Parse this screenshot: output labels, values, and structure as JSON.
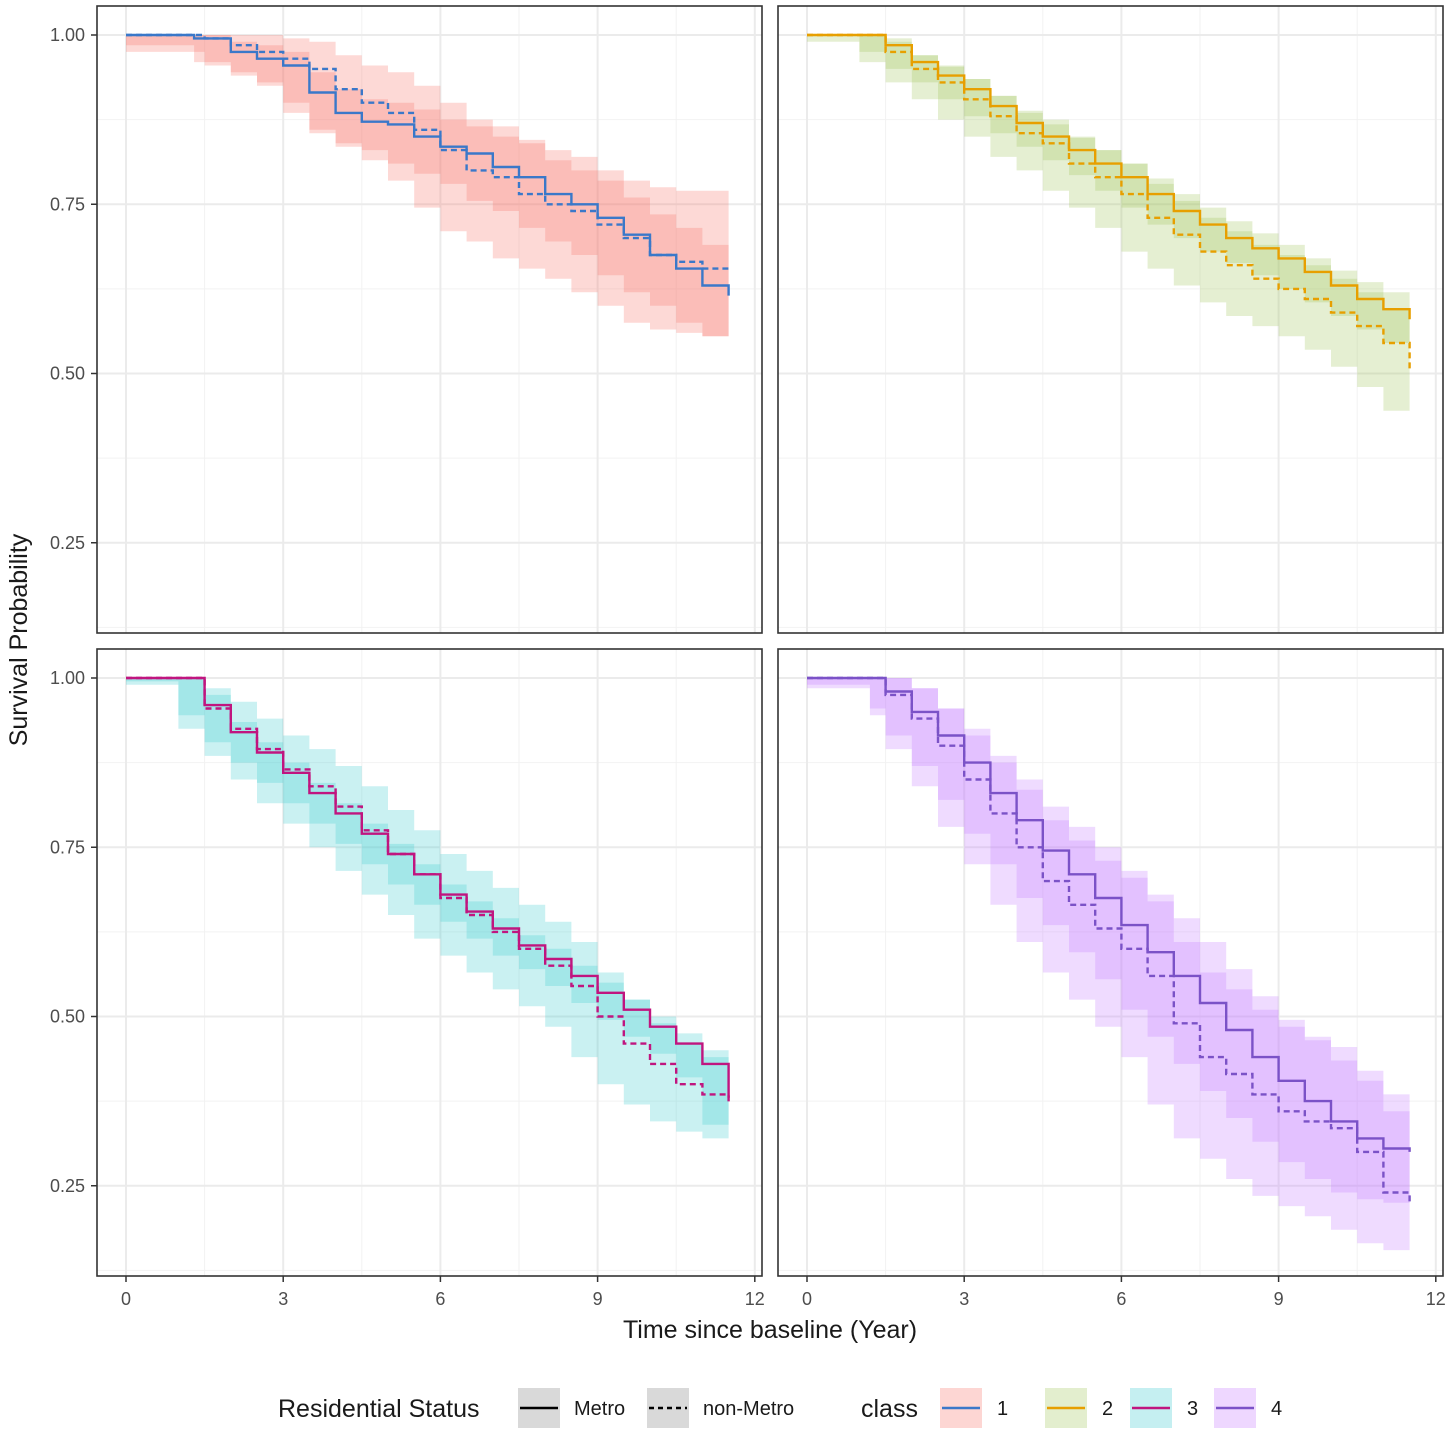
{
  "chart_data": {
    "type": "line",
    "subtype": "kaplan-meier survival curves with confidence bands, faceted 2x2 by class",
    "xlabel": "Time since baseline (Year)",
    "ylabel": "Survival Probability",
    "xlim": [
      0,
      12
    ],
    "ylim": [
      0.12,
      1.04
    ],
    "x_ticks": [
      "0",
      "3",
      "6",
      "9",
      "12"
    ],
    "y_ticks": [
      "0.25",
      "0.50",
      "0.75",
      "1.00"
    ],
    "grid": true,
    "legend_position": "bottom",
    "legends": {
      "linetype": {
        "title": "Residential Status",
        "entries": [
          "Metro",
          "non-Metro"
        ]
      },
      "class": {
        "title": "class",
        "entries": [
          "1",
          "2",
          "3",
          "4"
        ]
      }
    },
    "colors": {
      "1": {
        "line": "#3a78c9",
        "fill": "#f8766d"
      },
      "2": {
        "line": "#e79f00",
        "fill": "#a3c65c"
      },
      "3": {
        "line": "#c0157f",
        "fill": "#3fcbd0"
      },
      "4": {
        "line": "#7b52c7",
        "fill": "#c77cff"
      }
    },
    "panels": [
      {
        "class": "1",
        "series": [
          {
            "name": "Metro",
            "x": [
              0,
              1.3,
              2,
              2.5,
              3,
              3.5,
              4,
              4.5,
              5,
              5.5,
              6,
              6.5,
              7,
              7.5,
              8,
              8.5,
              9,
              9.5,
              10,
              10.5,
              11,
              11.5
            ],
            "y": [
              1.0,
              0.995,
              0.975,
              0.965,
              0.955,
              0.915,
              0.885,
              0.872,
              0.868,
              0.85,
              0.835,
              0.825,
              0.805,
              0.79,
              0.765,
              0.75,
              0.73,
              0.705,
              0.675,
              0.655,
              0.63,
              0.615
            ],
            "lower": [
              1.0,
              0.985,
              0.96,
              0.945,
              0.93,
              0.885,
              0.855,
              0.84,
              0.83,
              0.81,
              0.795,
              0.78,
              0.755,
              0.74,
              0.715,
              0.695,
              0.675,
              0.645,
              0.62,
              0.6,
              0.575,
              0.555
            ],
            "upper": [
              1.0,
              1.0,
              0.99,
              0.985,
              0.975,
              0.945,
              0.92,
              0.905,
              0.9,
              0.89,
              0.875,
              0.865,
              0.85,
              0.84,
              0.815,
              0.8,
              0.785,
              0.76,
              0.735,
              0.715,
              0.69,
              0.68
            ]
          },
          {
            "name": "non-Metro",
            "x": [
              0,
              1.5,
              2,
              2.5,
              3,
              3.5,
              4,
              4.5,
              5,
              5.5,
              6,
              6.5,
              7,
              7.5,
              8,
              8.5,
              9,
              9.5,
              10,
              10.5,
              11,
              11.5
            ],
            "y": [
              1.0,
              0.995,
              0.985,
              0.975,
              0.965,
              0.95,
              0.92,
              0.9,
              0.885,
              0.86,
              0.83,
              0.8,
              0.79,
              0.765,
              0.75,
              0.74,
              0.72,
              0.7,
              0.675,
              0.665,
              0.655,
              0.65
            ],
            "lower": [
              1.0,
              0.975,
              0.955,
              0.94,
              0.925,
              0.9,
              0.86,
              0.835,
              0.815,
              0.785,
              0.745,
              0.71,
              0.695,
              0.67,
              0.655,
              0.64,
              0.62,
              0.6,
              0.575,
              0.565,
              0.56,
              0.555
            ],
            "upper": [
              1.0,
              1.0,
              1.0,
              1.0,
              0.995,
              0.99,
              0.97,
              0.955,
              0.945,
              0.925,
              0.9,
              0.875,
              0.865,
              0.845,
              0.83,
              0.82,
              0.8,
              0.785,
              0.775,
              0.77,
              0.77,
              0.77
            ]
          }
        ]
      },
      {
        "class": "2",
        "series": [
          {
            "name": "Metro",
            "x": [
              0,
              1.0,
              1.5,
              2,
              2.5,
              3,
              3.5,
              4,
              4.5,
              5,
              5.5,
              6,
              6.5,
              7,
              7.5,
              8,
              8.5,
              9,
              9.5,
              10,
              10.5,
              11,
              11.5
            ],
            "y": [
              1.0,
              1.0,
              0.985,
              0.96,
              0.94,
              0.92,
              0.895,
              0.87,
              0.85,
              0.83,
              0.81,
              0.79,
              0.765,
              0.74,
              0.72,
              0.7,
              0.685,
              0.67,
              0.65,
              0.63,
              0.61,
              0.595,
              0.58
            ],
            "lower": [
              1.0,
              1.0,
              0.975,
              0.95,
              0.93,
              0.905,
              0.88,
              0.855,
              0.835,
              0.815,
              0.793,
              0.77,
              0.745,
              0.72,
              0.7,
              0.68,
              0.663,
              0.645,
              0.625,
              0.605,
              0.585,
              0.565,
              0.545
            ],
            "upper": [
              1.0,
              1.0,
              0.995,
              0.97,
              0.953,
              0.935,
              0.91,
              0.888,
              0.868,
              0.848,
              0.83,
              0.81,
              0.788,
              0.765,
              0.745,
              0.725,
              0.707,
              0.69,
              0.67,
              0.652,
              0.635,
              0.62,
              0.605
            ]
          },
          {
            "name": "non-Metro",
            "x": [
              0,
              1.0,
              1.5,
              2,
              2.5,
              3,
              3.5,
              4,
              4.5,
              5,
              5.5,
              6,
              6.5,
              7,
              7.5,
              8,
              8.5,
              9,
              9.5,
              10,
              10.5,
              11,
              11.5
            ],
            "y": [
              1.0,
              1.0,
              0.975,
              0.95,
              0.93,
              0.905,
              0.88,
              0.855,
              0.84,
              0.81,
              0.79,
              0.765,
              0.73,
              0.705,
              0.68,
              0.66,
              0.64,
              0.625,
              0.61,
              0.59,
              0.57,
              0.545,
              0.505
            ],
            "lower": [
              1.0,
              0.99,
              0.96,
              0.93,
              0.905,
              0.875,
              0.85,
              0.82,
              0.8,
              0.77,
              0.745,
              0.715,
              0.68,
              0.655,
              0.63,
              0.605,
              0.585,
              0.57,
              0.555,
              0.535,
              0.51,
              0.48,
              0.445
            ],
            "upper": [
              1.0,
              1.0,
              0.99,
              0.97,
              0.955,
              0.935,
              0.91,
              0.885,
              0.875,
              0.85,
              0.83,
              0.81,
              0.78,
              0.755,
              0.73,
              0.71,
              0.69,
              0.675,
              0.66,
              0.64,
              0.62,
              0.595,
              0.565
            ]
          }
        ]
      },
      {
        "class": "3",
        "series": [
          {
            "name": "Metro",
            "x": [
              0,
              1.0,
              1.5,
              2,
              2.5,
              3,
              3.5,
              4,
              4.5,
              5,
              5.5,
              6,
              6.5,
              7,
              7.5,
              8,
              8.5,
              9,
              9.5,
              10,
              10.5,
              11,
              11.5
            ],
            "y": [
              1.0,
              1.0,
              0.96,
              0.92,
              0.89,
              0.86,
              0.83,
              0.8,
              0.77,
              0.74,
              0.71,
              0.68,
              0.655,
              0.63,
              0.605,
              0.585,
              0.56,
              0.535,
              0.51,
              0.485,
              0.46,
              0.43,
              0.38
            ],
            "lower": [
              1.0,
              0.995,
              0.945,
              0.905,
              0.875,
              0.845,
              0.815,
              0.785,
              0.755,
              0.725,
              0.695,
              0.665,
              0.64,
              0.615,
              0.59,
              0.57,
              0.545,
              0.52,
              0.495,
              0.47,
              0.445,
              0.41,
              0.34
            ],
            "upper": [
              1.0,
              1.0,
              0.975,
              0.935,
              0.905,
              0.875,
              0.845,
              0.815,
              0.785,
              0.755,
              0.725,
              0.695,
              0.67,
              0.645,
              0.62,
              0.6,
              0.575,
              0.55,
              0.525,
              0.5,
              0.475,
              0.45,
              0.42
            ]
          },
          {
            "name": "non-Metro",
            "x": [
              0,
              1.0,
              1.5,
              2,
              2.5,
              3,
              3.5,
              4,
              4.5,
              5,
              5.5,
              6,
              6.5,
              7,
              7.5,
              8,
              8.5,
              9,
              9.5,
              10,
              10.5,
              11,
              11.5
            ],
            "y": [
              1.0,
              1.0,
              0.955,
              0.925,
              0.895,
              0.865,
              0.84,
              0.81,
              0.775,
              0.74,
              0.71,
              0.675,
              0.65,
              0.625,
              0.6,
              0.575,
              0.545,
              0.5,
              0.46,
              0.43,
              0.4,
              0.385,
              0.37
            ],
            "lower": [
              1.0,
              0.99,
              0.925,
              0.885,
              0.85,
              0.815,
              0.785,
              0.75,
              0.715,
              0.68,
              0.65,
              0.615,
              0.59,
              0.565,
              0.54,
              0.515,
              0.485,
              0.44,
              0.4,
              0.37,
              0.345,
              0.33,
              0.32
            ],
            "upper": [
              1.0,
              1.0,
              0.985,
              0.965,
              0.94,
              0.915,
              0.895,
              0.87,
              0.84,
              0.805,
              0.775,
              0.74,
              0.715,
              0.69,
              0.665,
              0.64,
              0.61,
              0.565,
              0.525,
              0.49,
              0.46,
              0.44,
              0.425
            ]
          }
        ]
      },
      {
        "class": "4",
        "series": [
          {
            "name": "Metro",
            "x": [
              0,
              1.2,
              1.5,
              2,
              2.5,
              3,
              3.5,
              4,
              4.5,
              5,
              5.5,
              6,
              6.5,
              7,
              7.5,
              8,
              8.5,
              9,
              9.5,
              10,
              10.5,
              11,
              11.5
            ],
            "y": [
              1.0,
              1.0,
              0.98,
              0.95,
              0.915,
              0.875,
              0.83,
              0.79,
              0.745,
              0.71,
              0.675,
              0.635,
              0.595,
              0.56,
              0.52,
              0.48,
              0.44,
              0.405,
              0.375,
              0.345,
              0.32,
              0.305,
              0.3
            ],
            "lower": [
              1.0,
              0.99,
              0.955,
              0.915,
              0.87,
              0.82,
              0.77,
              0.725,
              0.675,
              0.635,
              0.595,
              0.555,
              0.51,
              0.47,
              0.43,
              0.39,
              0.35,
              0.315,
              0.285,
              0.26,
              0.24,
              0.23,
              0.225
            ],
            "upper": [
              1.0,
              1.0,
              1.0,
              0.985,
              0.955,
              0.925,
              0.885,
              0.85,
              0.81,
              0.78,
              0.75,
              0.715,
              0.68,
              0.645,
              0.61,
              0.57,
              0.53,
              0.495,
              0.465,
              0.435,
              0.405,
              0.385,
              0.375
            ]
          },
          {
            "name": "non-Metro",
            "x": [
              0,
              1.2,
              1.5,
              2,
              2.5,
              3,
              3.5,
              4,
              4.5,
              5,
              5.5,
              6,
              6.5,
              7,
              7.5,
              8,
              8.5,
              9,
              9.5,
              10,
              10.5,
              11,
              11.5
            ],
            "y": [
              1.0,
              1.0,
              0.975,
              0.94,
              0.9,
              0.85,
              0.8,
              0.75,
              0.7,
              0.665,
              0.63,
              0.6,
              0.56,
              0.49,
              0.44,
              0.415,
              0.385,
              0.36,
              0.345,
              0.335,
              0.3,
              0.24,
              0.225
            ],
            "lower": [
              1.0,
              0.985,
              0.945,
              0.895,
              0.84,
              0.78,
              0.725,
              0.665,
              0.61,
              0.565,
              0.525,
              0.485,
              0.44,
              0.37,
              0.32,
              0.29,
              0.26,
              0.235,
              0.22,
              0.205,
              0.185,
              0.165,
              0.155
            ],
            "upper": [
              1.0,
              1.0,
              1.0,
              0.985,
              0.955,
              0.915,
              0.875,
              0.835,
              0.79,
              0.76,
              0.73,
              0.705,
              0.67,
              0.61,
              0.565,
              0.54,
              0.51,
              0.485,
              0.47,
              0.455,
              0.42,
              0.36,
              0.345
            ]
          }
        ]
      }
    ]
  }
}
